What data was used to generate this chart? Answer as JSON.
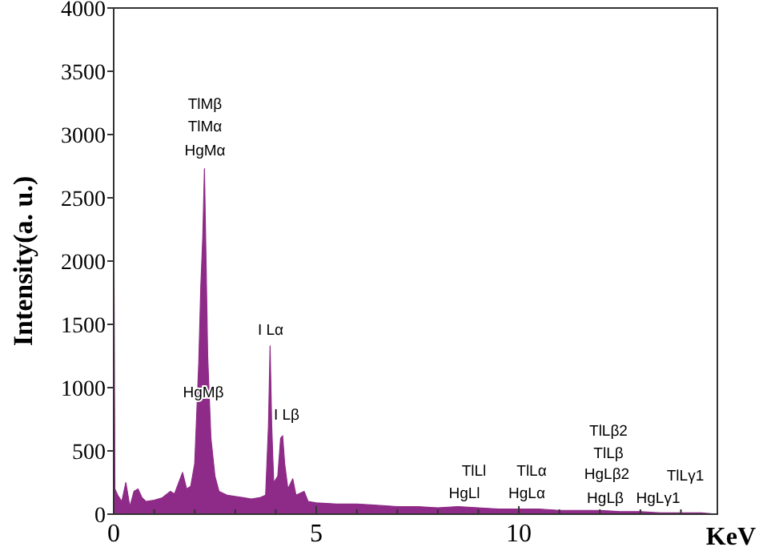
{
  "chart_data": {
    "type": "area",
    "xlabel": "KeV",
    "ylabel": "Intensity(a. u.)",
    "xlim": [
      0,
      14.9
    ],
    "xticks": [
      0,
      {
        "value": 1,
        "label": null
      },
      {
        "value": 2,
        "label": null
      },
      {
        "value": 3,
        "label": null
      },
      {
        "value": 4,
        "label": null
      },
      5,
      {
        "value": 6,
        "label": null
      },
      {
        "value": 7,
        "label": null
      },
      {
        "value": 8,
        "label": null
      },
      {
        "value": 9,
        "label": null
      },
      10,
      {
        "value": 11,
        "label": null
      },
      {
        "value": 12,
        "label": null
      },
      {
        "value": 13,
        "label": null
      },
      {
        "value": 14,
        "label": null
      }
    ],
    "ylim": [
      0,
      4000
    ],
    "yticks": [
      0,
      500,
      1000,
      1500,
      2000,
      2500,
      3000,
      3500,
      4000
    ],
    "grid": false,
    "series": [
      {
        "color": "#8e2a87",
        "x": [
          0,
          0.03,
          0.1,
          0.2,
          0.3,
          0.4,
          0.5,
          0.6,
          0.7,
          0.8,
          1.0,
          1.2,
          1.4,
          1.5,
          1.7,
          1.8,
          1.9,
          2.0,
          2.1,
          2.15,
          2.2,
          2.24,
          2.28,
          2.32,
          2.4,
          2.5,
          2.6,
          2.8,
          3.0,
          3.2,
          3.4,
          3.6,
          3.75,
          3.82,
          3.86,
          3.9,
          3.95,
          4.05,
          4.12,
          4.17,
          4.22,
          4.3,
          4.42,
          4.5,
          4.7,
          4.8,
          5,
          5.5,
          6,
          6.5,
          7,
          7.5,
          8,
          8.5,
          9,
          9.5,
          10,
          10.5,
          11,
          11.5,
          12,
          12.5,
          13,
          13.5,
          14,
          14.5,
          14.9
        ],
        "values": [
          2570,
          200,
          150,
          100,
          250,
          60,
          180,
          200,
          130,
          100,
          110,
          130,
          180,
          160,
          330,
          200,
          220,
          400,
          1200,
          1800,
          2200,
          2730,
          2000,
          1250,
          600,
          300,
          180,
          150,
          140,
          130,
          120,
          130,
          150,
          700,
          1330,
          700,
          250,
          300,
          600,
          620,
          400,
          200,
          280,
          150,
          180,
          100,
          90,
          80,
          80,
          70,
          60,
          60,
          50,
          60,
          50,
          40,
          40,
          40,
          30,
          30,
          30,
          20,
          20,
          10,
          10,
          10,
          0
        ]
      }
    ],
    "annotations": [
      "TlMβ",
      "TlMα",
      "HgMα",
      "HgMβ",
      "I Lα",
      "I Lβ",
      "TlLl",
      "HgLl",
      "TlLα",
      "HgLα",
      "TlLβ2",
      "TlLβ",
      "HgLβ2",
      "HgLβ",
      "TlLγ1",
      "HgLγ1"
    ]
  }
}
